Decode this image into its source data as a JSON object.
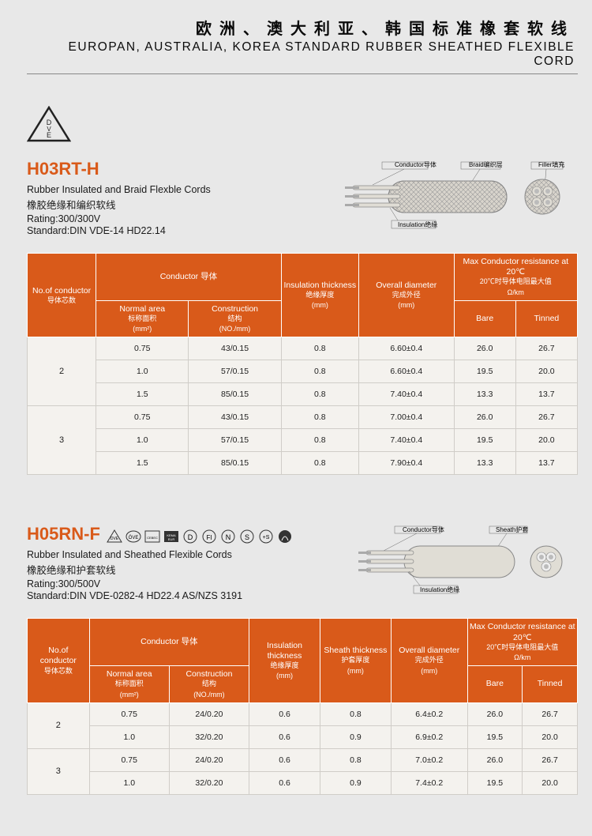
{
  "page": {
    "title_cn": "欧洲、澳大利亚、韩国标准橡套软线",
    "title_en": "EUROPAN, AUSTRALIA, KOREA STANDARD RUBBER SHEATHED FLEXIBLE CORD"
  },
  "section1": {
    "model": "H03RT-H",
    "desc_en": "Rubber Insulated and Braid Flexble Cords",
    "desc_cn": "橡胶绝缘和编织软线",
    "rating": "Rating:300/300V",
    "standard": "Standard:DIN VDE-14 HD22.14",
    "diag": {
      "conductor": "Conductor导体",
      "braid": "Braid编织层",
      "filler": "Filler填充",
      "insulation": "Insulation绝缘"
    },
    "headers": {
      "no_of": "No.of\nconductor",
      "no_of_cn": "导体芯数",
      "conductor": "Conductor 导体",
      "normal_area": "Normal area",
      "normal_area_cn": "标称面积",
      "normal_area_unit": "(mm²)",
      "construction": "Construction",
      "construction_cn": "结构",
      "construction_unit": "(NO./mm)",
      "insulation": "Insulation\nthickness",
      "insulation_cn": "绝缘厚度",
      "insulation_unit": "(mm)",
      "overall": "Overall\ndiameter",
      "overall_cn": "完成外径",
      "overall_unit": "(mm)",
      "max_cond": "Max Conductor\nresistance at 20℃",
      "max_cond_cn": "20℃时导体电阻最大值",
      "max_cond_unit": "Ω/km",
      "bare": "Bare",
      "tinned": "Tinned"
    },
    "rows": [
      {
        "n": "2",
        "area": "0.75",
        "con": "43/0.15",
        "ins": "0.8",
        "od": "6.60±0.4",
        "bare": "26.0",
        "tin": "26.7"
      },
      {
        "n": "",
        "area": "1.0",
        "con": "57/0.15",
        "ins": "0.8",
        "od": "6.60±0.4",
        "bare": "19.5",
        "tin": "20.0"
      },
      {
        "n": "",
        "area": "1.5",
        "con": "85/0.15",
        "ins": "0.8",
        "od": "7.40±0.4",
        "bare": "13.3",
        "tin": "13.7"
      },
      {
        "n": "3",
        "area": "0.75",
        "con": "43/0.15",
        "ins": "0.8",
        "od": "7.00±0.4",
        "bare": "26.0",
        "tin": "26.7"
      },
      {
        "n": "",
        "area": "1.0",
        "con": "57/0.15",
        "ins": "0.8",
        "od": "7.40±0.4",
        "bare": "19.5",
        "tin": "20.0"
      },
      {
        "n": "",
        "area": "1.5",
        "con": "85/0.15",
        "ins": "0.8",
        "od": "7.90±0.4",
        "bare": "13.3",
        "tin": "13.7"
      }
    ]
  },
  "section2": {
    "model": "H05RN-F",
    "desc_en": "Rubber Insulated and Sheathed  Flexible Cords",
    "desc_cn": "橡胶绝缘和护套软线",
    "rating": "Rating:300/500V",
    "standard": "Standard:DIN VDE-0282-4 HD22.4 AS/NZS 3191",
    "diag": {
      "conductor": "Conductor导体",
      "sheath": "Sheath护套",
      "insulation": "Insulation绝缘"
    },
    "headers": {
      "sheath": "Sheath\nthickness",
      "sheath_cn": "护套厚度",
      "sheath_unit": "(mm)"
    },
    "rows": [
      {
        "n": "2",
        "area": "0.75",
        "con": "24/0.20",
        "ins": "0.6",
        "sh": "0.8",
        "od": "6.4±0.2",
        "bare": "26.0",
        "tin": "26.7"
      },
      {
        "n": "",
        "area": "1.0",
        "con": "32/0.20",
        "ins": "0.6",
        "sh": "0.9",
        "od": "6.9±0.2",
        "bare": "19.5",
        "tin": "20.0"
      },
      {
        "n": "3",
        "area": "0.75",
        "con": "24/0.20",
        "ins": "0.6",
        "sh": "0.8",
        "od": "7.0±0.2",
        "bare": "26.0",
        "tin": "26.7"
      },
      {
        "n": "",
        "area": "1.0",
        "con": "32/0.20",
        "ins": "0.6",
        "sh": "0.9",
        "od": "7.4±0.2",
        "bare": "19.5",
        "tin": "20.0"
      }
    ]
  },
  "colors": {
    "accent": "#d95a1a",
    "header_bg": "#d95a1a",
    "cell_bg": "#f4f2ee",
    "page_bg": "#e8e8e8"
  }
}
